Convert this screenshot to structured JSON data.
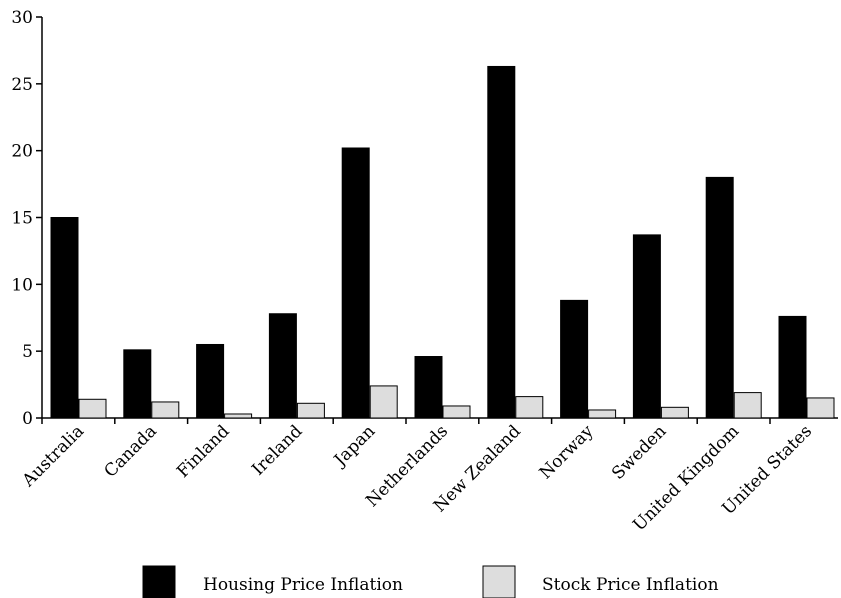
{
  "chart_data": {
    "type": "bar",
    "title": "",
    "xlabel": "",
    "ylabel": "",
    "ylim": [
      0,
      30
    ],
    "yticks": [
      "0",
      "5",
      "10",
      "15",
      "20",
      "25",
      "30"
    ],
    "grid": false,
    "legend_position": "bottom",
    "categories": [
      "Australia",
      "Canada",
      "Finland",
      "Ireland",
      "Japan",
      "Netherlands",
      "New Zealand",
      "Norway",
      "Sweden",
      "United Kingdom",
      "United States"
    ],
    "series": [
      {
        "name": "Housing Price Inflation",
        "color": "#000000",
        "values": [
          15.0,
          5.1,
          5.5,
          7.8,
          20.2,
          4.6,
          26.3,
          8.8,
          13.7,
          18.0,
          7.6
        ]
      },
      {
        "name": "Stock Price Inflation",
        "color": "#dddddd",
        "values": [
          1.4,
          1.2,
          0.3,
          1.1,
          2.4,
          0.9,
          1.6,
          0.6,
          0.8,
          1.9,
          1.5
        ]
      }
    ]
  }
}
